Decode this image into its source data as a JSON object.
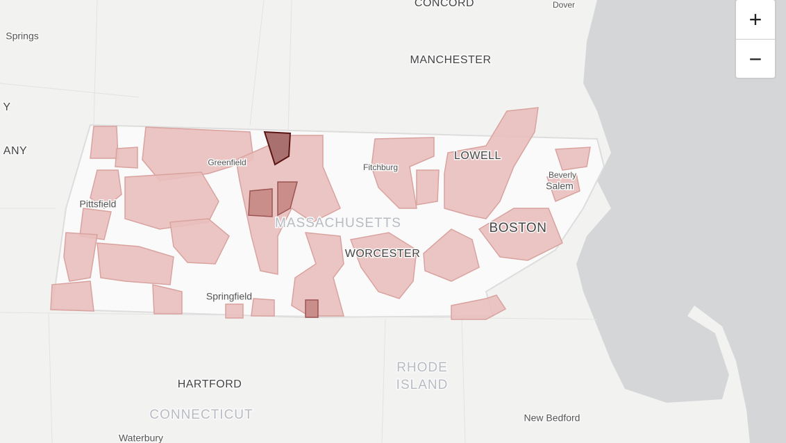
{
  "map": {
    "labels": [
      "CONCORD",
      "Dover",
      "Springs",
      "MANCHESTER",
      "Y",
      "ANY",
      "Greenfield",
      "Fitchburg",
      "LOWELL",
      "Beverly",
      "Salem",
      "Pittsfield",
      "MASSACHUSETTS",
      "BOSTON",
      "WORCESTER",
      "Springfield",
      "RHODE",
      "ISLAND",
      "HARTFORD",
      "CONNECTICUT",
      "New Bedford",
      "Waterbury"
    ],
    "zoom_controls": {
      "zoom_in": "+",
      "zoom_out": "−"
    }
  }
}
